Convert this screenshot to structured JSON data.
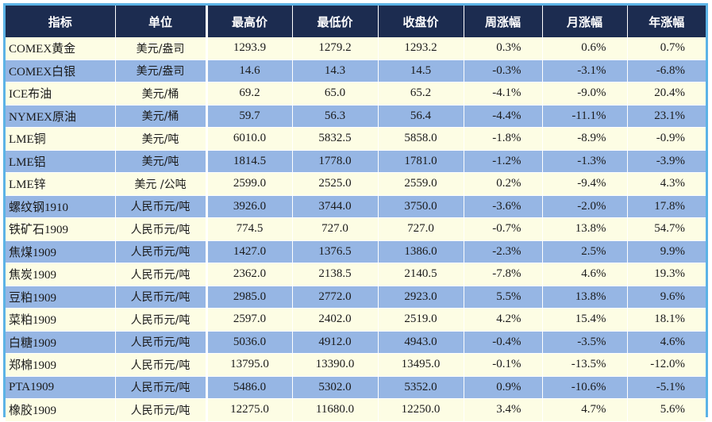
{
  "header": [
    "指标",
    "单位",
    "最高价",
    "最低价",
    "收盘价",
    "周涨幅",
    "月涨幅",
    "年涨幅"
  ],
  "rows": [
    [
      "COMEX黄金",
      "美元/盎司",
      "1293.9",
      "1279.2",
      "1293.2",
      "0.3%",
      "0.6%",
      "0.7%"
    ],
    [
      "COMEX白银",
      "美元/盎司",
      "14.6",
      "14.3",
      "14.5",
      "-0.3%",
      "-3.1%",
      "-6.8%"
    ],
    [
      "ICE布油",
      "美元/桶",
      "69.2",
      "65.0",
      "65.2",
      "-4.1%",
      "-9.0%",
      "20.4%"
    ],
    [
      "NYMEX原油",
      "美元/桶",
      "59.7",
      "56.3",
      "56.4",
      "-4.4%",
      "-11.1%",
      "23.1%"
    ],
    [
      "LME铜",
      "美元/吨",
      "6010.0",
      "5832.5",
      "5858.0",
      "-1.8%",
      "-8.9%",
      "-0.9%"
    ],
    [
      "LME铝",
      "美元/吨",
      "1814.5",
      "1778.0",
      "1781.0",
      "-1.2%",
      "-1.3%",
      "-3.9%"
    ],
    [
      "LME锌",
      "美元 /公吨",
      "2599.0",
      "2525.0",
      "2559.0",
      "0.2%",
      "-9.4%",
      "4.3%"
    ],
    [
      "螺纹钢1910",
      "人民币元/吨",
      "3926.0",
      "3744.0",
      "3750.0",
      "-3.6%",
      "-2.0%",
      "17.8%"
    ],
    [
      "铁矿石1909",
      "人民币元/吨",
      "774.5",
      "727.0",
      "727.0",
      "-0.7%",
      "13.8%",
      "54.7%"
    ],
    [
      "焦煤1909",
      "人民币元/吨",
      "1427.0",
      "1376.5",
      "1386.0",
      "-2.3%",
      "2.5%",
      "9.9%"
    ],
    [
      "焦炭1909",
      "人民币元/吨",
      "2362.0",
      "2138.5",
      "2140.5",
      "-7.8%",
      "4.6%",
      "19.3%"
    ],
    [
      "豆粕1909",
      "人民币元/吨",
      "2985.0",
      "2772.0",
      "2923.0",
      "5.5%",
      "13.8%",
      "9.6%"
    ],
    [
      "菜粕1909",
      "人民币元/吨",
      "2597.0",
      "2402.0",
      "2519.0",
      "4.2%",
      "15.4%",
      "18.1%"
    ],
    [
      "白糖1909",
      "人民币元/吨",
      "5036.0",
      "4912.0",
      "4943.0",
      "-0.4%",
      "-3.5%",
      "4.6%"
    ],
    [
      "郑棉1909",
      "人民币元/吨",
      "13795.0",
      "13390.0",
      "13495.0",
      "-0.1%",
      "-13.5%",
      "-12.0%"
    ],
    [
      "PTA1909",
      "人民币元/吨",
      "5486.0",
      "5302.0",
      "5352.0",
      "0.9%",
      "-10.6%",
      "-5.1%"
    ],
    [
      "橡胶1909",
      "人民币元/吨",
      "12275.0",
      "11680.0",
      "12250.0",
      "3.4%",
      "4.7%",
      "5.6%"
    ]
  ]
}
